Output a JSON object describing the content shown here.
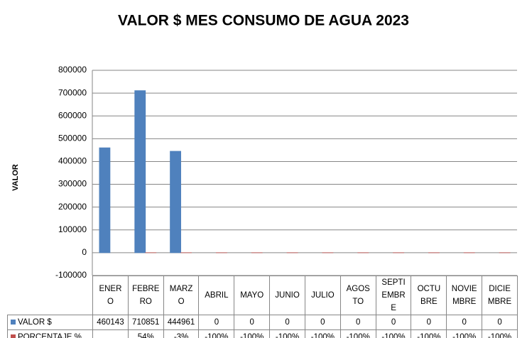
{
  "chart_data": {
    "type": "bar",
    "title": "VALOR $ MES CONSUMO DE AGUA 2023",
    "y_label": "VALOR",
    "categories": [
      "ENERO",
      "FEBRERO",
      "MARZO",
      "ABRIL",
      "MAYO",
      "JUNIO",
      "JULIO",
      "AGOSTO",
      "SEPTIEMBRE",
      "OCTUBRE",
      "NOVIEMBRE",
      "DICIEMBRE"
    ],
    "series": [
      {
        "name": "VALOR $",
        "color": "#4f81bd",
        "values": [
          460143,
          710851,
          444961,
          0,
          0,
          0,
          0,
          0,
          0,
          0,
          0,
          0
        ]
      },
      {
        "name": "PORCENTAJE %",
        "color": "#c0504d",
        "values": [
          null,
          54,
          -3,
          -100,
          -100,
          -100,
          -100,
          -100,
          -100,
          -100,
          -100,
          -100
        ],
        "value_labels": [
          null,
          "54%",
          "-3%",
          "-100%",
          "-100%",
          "-100%",
          "-100%",
          "-100%",
          "-100%",
          "-100%",
          "-100%",
          "-100%"
        ]
      }
    ],
    "ylim": [
      -100000,
      800000
    ],
    "yticks": [
      -100000,
      0,
      100000,
      200000,
      300000,
      400000,
      500000,
      600000,
      700000,
      800000
    ],
    "grid": true,
    "data_table": true
  }
}
